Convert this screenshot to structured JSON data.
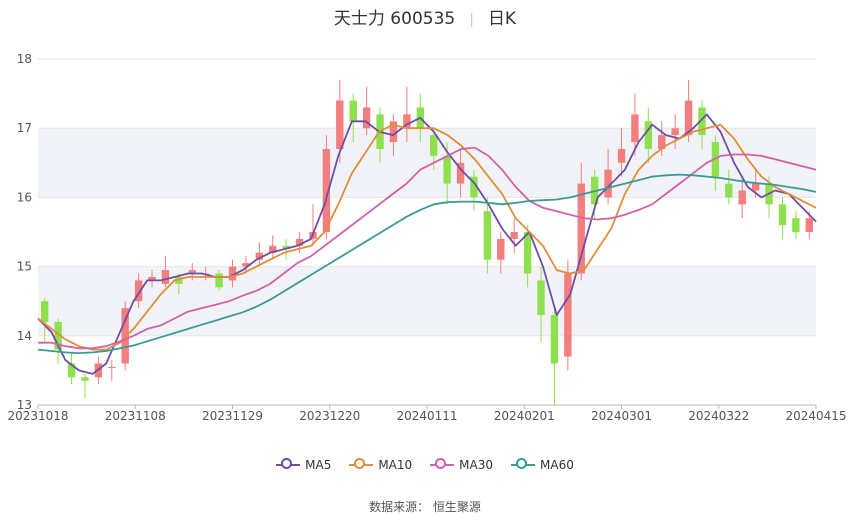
{
  "header": {
    "stock": "天士力 600535",
    "period": "日K"
  },
  "footer": {
    "source_label": "数据来源：",
    "source_value": "恒生聚源"
  },
  "colors": {
    "up": "#f47d7d",
    "down": "#8fe04e",
    "ma5": "#6f4ea6",
    "ma10": "#e18e3a",
    "ma30": "#d35fad",
    "ma60": "#3a9a98",
    "band": "#f2f3f8",
    "grid": "#e6e6e6"
  },
  "chart_data": {
    "type": "candlestick",
    "x_ticks": [
      "20231018",
      "20231108",
      "20231129",
      "20231220",
      "20240111",
      "20240201",
      "20240301",
      "20240322",
      "20240415"
    ],
    "y_ticks": [
      13,
      14,
      15,
      16,
      17,
      18
    ],
    "ylim": [
      13,
      18
    ],
    "legend_position": "bottom",
    "series": [
      {
        "name": "MA5",
        "color": "#6f4ea6",
        "values": [
          14.25,
          14.05,
          13.65,
          13.5,
          13.45,
          13.6,
          14.05,
          14.5,
          14.8,
          14.8,
          14.85,
          14.9,
          14.9,
          14.85,
          14.85,
          14.95,
          15.1,
          15.2,
          15.25,
          15.3,
          15.4,
          15.9,
          16.6,
          17.1,
          17.1,
          16.95,
          16.9,
          17.05,
          17.15,
          16.95,
          16.65,
          16.4,
          16.2,
          15.9,
          15.55,
          15.3,
          15.5,
          15.0,
          14.3,
          14.6,
          15.3,
          16.0,
          16.2,
          16.4,
          16.8,
          17.05,
          16.9,
          16.85,
          17.0,
          17.2,
          16.95,
          16.5,
          16.15,
          16.0,
          16.1,
          16.05,
          15.85,
          15.65
        ]
      },
      {
        "name": "MA10",
        "color": "#e18e3a",
        "values": [
          14.25,
          14.1,
          13.95,
          13.85,
          13.8,
          13.8,
          13.9,
          14.1,
          14.35,
          14.6,
          14.8,
          14.85,
          14.85,
          14.85,
          14.85,
          14.9,
          15.0,
          15.1,
          15.2,
          15.25,
          15.3,
          15.5,
          15.9,
          16.35,
          16.65,
          16.95,
          17.05,
          17.0,
          17.0,
          17.0,
          16.9,
          16.75,
          16.55,
          16.3,
          16.05,
          15.7,
          15.5,
          15.3,
          14.95,
          14.9,
          14.95,
          15.25,
          15.55,
          16.05,
          16.4,
          16.6,
          16.75,
          16.85,
          16.95,
          17.0,
          17.05,
          16.85,
          16.55,
          16.3,
          16.15,
          16.05,
          15.95,
          15.85
        ]
      },
      {
        "name": "MA30",
        "color": "#d35fad",
        "values": [
          13.9,
          13.9,
          13.85,
          13.82,
          13.82,
          13.85,
          13.92,
          14.0,
          14.1,
          14.15,
          14.25,
          14.35,
          14.4,
          14.45,
          14.5,
          14.58,
          14.65,
          14.75,
          14.9,
          15.05,
          15.15,
          15.3,
          15.45,
          15.6,
          15.75,
          15.9,
          16.05,
          16.2,
          16.4,
          16.5,
          16.6,
          16.7,
          16.72,
          16.6,
          16.4,
          16.15,
          15.95,
          15.85,
          15.8,
          15.75,
          15.7,
          15.68,
          15.7,
          15.75,
          15.82,
          15.9,
          16.05,
          16.2,
          16.35,
          16.5,
          16.6,
          16.62,
          16.62,
          16.6,
          16.55,
          16.5,
          16.45,
          16.4
        ]
      },
      {
        "name": "MA60",
        "color": "#3a9a98",
        "values": [
          13.8,
          13.78,
          13.76,
          13.75,
          13.76,
          13.78,
          13.82,
          13.86,
          13.92,
          13.98,
          14.04,
          14.1,
          14.16,
          14.22,
          14.28,
          14.34,
          14.42,
          14.52,
          14.64,
          14.76,
          14.88,
          15.0,
          15.12,
          15.24,
          15.36,
          15.48,
          15.6,
          15.72,
          15.82,
          15.9,
          15.93,
          15.94,
          15.94,
          15.92,
          15.9,
          15.92,
          15.95,
          15.96,
          15.97,
          16.0,
          16.05,
          16.1,
          16.15,
          16.2,
          16.25,
          16.3,
          16.32,
          16.33,
          16.32,
          16.3,
          16.28,
          16.25,
          16.22,
          16.2,
          16.18,
          16.15,
          16.12,
          16.08
        ]
      }
    ],
    "candles": [
      [
        14.5,
        14.2,
        14.55,
        13.9
      ],
      [
        14.2,
        13.8,
        14.25,
        13.6
      ],
      [
        13.6,
        13.4,
        13.75,
        13.3
      ],
      [
        13.4,
        13.35,
        13.45,
        13.1
      ],
      [
        13.4,
        13.6,
        13.7,
        13.3
      ],
      [
        13.55,
        13.55,
        13.65,
        13.35
      ],
      [
        13.6,
        14.4,
        14.5,
        13.5
      ],
      [
        14.5,
        14.8,
        14.9,
        14.4
      ],
      [
        14.8,
        14.85,
        14.95,
        14.7
      ],
      [
        14.75,
        14.95,
        15.15,
        14.7
      ],
      [
        14.85,
        14.75,
        14.9,
        14.6
      ],
      [
        14.9,
        14.95,
        15.05,
        14.8
      ],
      [
        14.9,
        14.9,
        15.0,
        14.8
      ],
      [
        14.9,
        14.7,
        14.95,
        14.65
      ],
      [
        14.8,
        15.0,
        15.1,
        14.7
      ],
      [
        15.0,
        15.05,
        15.15,
        14.9
      ],
      [
        15.1,
        15.2,
        15.35,
        15.0
      ],
      [
        15.2,
        15.3,
        15.45,
        15.1
      ],
      [
        15.3,
        15.25,
        15.4,
        15.1
      ],
      [
        15.3,
        15.4,
        15.5,
        15.2
      ],
      [
        15.4,
        15.5,
        15.9,
        15.3
      ],
      [
        15.5,
        16.7,
        16.9,
        15.4
      ],
      [
        16.7,
        17.4,
        17.7,
        16.5
      ],
      [
        17.4,
        17.1,
        17.5,
        16.8
      ],
      [
        17.0,
        17.3,
        17.6,
        16.9
      ],
      [
        17.2,
        16.7,
        17.3,
        16.5
      ],
      [
        16.8,
        17.1,
        17.2,
        16.6
      ],
      [
        17.0,
        17.2,
        17.6,
        16.8
      ],
      [
        17.3,
        17.0,
        17.5,
        16.8
      ],
      [
        16.9,
        16.6,
        17.0,
        16.4
      ],
      [
        16.6,
        16.2,
        16.8,
        15.9
      ],
      [
        16.2,
        16.5,
        16.7,
        16.0
      ],
      [
        16.3,
        16.0,
        16.4,
        15.8
      ],
      [
        15.8,
        15.1,
        16.0,
        14.9
      ],
      [
        15.1,
        15.4,
        15.5,
        14.9
      ],
      [
        15.4,
        15.5,
        15.7,
        15.2
      ],
      [
        15.5,
        14.9,
        15.6,
        14.7
      ],
      [
        14.8,
        14.3,
        15.0,
        13.9
      ],
      [
        14.3,
        13.6,
        14.4,
        13.0
      ],
      [
        13.7,
        14.9,
        15.1,
        13.5
      ],
      [
        14.9,
        16.2,
        16.5,
        14.8
      ],
      [
        16.3,
        15.9,
        16.4,
        15.7
      ],
      [
        16.0,
        16.4,
        16.7,
        15.9
      ],
      [
        16.5,
        16.7,
        17.0,
        16.3
      ],
      [
        16.8,
        17.2,
        17.5,
        16.6
      ],
      [
        17.1,
        16.7,
        17.3,
        16.5
      ],
      [
        16.7,
        16.9,
        17.1,
        16.6
      ],
      [
        16.9,
        17.0,
        17.2,
        16.7
      ],
      [
        16.9,
        17.4,
        17.7,
        16.8
      ],
      [
        17.3,
        16.9,
        17.4,
        16.7
      ],
      [
        16.8,
        16.3,
        16.9,
        16.1
      ],
      [
        16.2,
        16.0,
        16.4,
        15.9
      ],
      [
        15.9,
        16.1,
        16.3,
        15.7
      ],
      [
        16.1,
        16.2,
        16.4,
        16.0
      ],
      [
        16.2,
        15.9,
        16.3,
        15.7
      ],
      [
        15.9,
        15.6,
        16.0,
        15.4
      ],
      [
        15.7,
        15.5,
        15.8,
        15.4
      ],
      [
        15.5,
        15.7,
        15.8,
        15.4
      ]
    ]
  }
}
